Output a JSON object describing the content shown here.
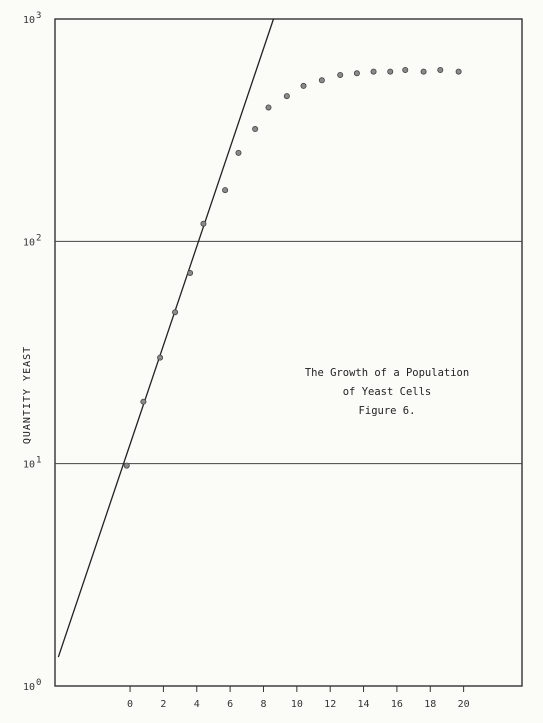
{
  "chart_data": {
    "type": "scatter",
    "ylabel": "QUANTITY YEAST",
    "xlabel": "",
    "y_scale": "log",
    "ylim": [
      1,
      1000
    ],
    "xlim": [
      -4.5,
      23.5
    ],
    "grid": "horizontal lines at each decade",
    "x_ticks": [
      0,
      2,
      4,
      6,
      8,
      10,
      12,
      14,
      16,
      18,
      20
    ],
    "y_ticks": [
      {
        "value": 1,
        "base": "10",
        "exp": "0"
      },
      {
        "value": 10,
        "base": "10",
        "exp": "1"
      },
      {
        "value": 100,
        "base": "10",
        "exp": "2"
      },
      {
        "value": 1000,
        "base": "10",
        "exp": "3"
      }
    ],
    "annotation": [
      "The Growth of a Population",
      "of Yeast Cells",
      "Figure 6."
    ],
    "series": [
      {
        "type": "scatter",
        "x": [
          -0.2,
          0.8,
          1.8,
          2.7,
          3.6,
          4.4,
          5.7,
          6.5,
          7.5,
          8.3,
          9.4,
          10.4,
          11.5,
          12.6,
          13.6,
          14.6,
          15.6,
          16.5,
          17.6,
          18.6,
          19.7
        ],
        "y": [
          9.8,
          19,
          30,
          48,
          72,
          120,
          170,
          250,
          320,
          400,
          450,
          500,
          530,
          560,
          570,
          580,
          580,
          590,
          580,
          590,
          580
        ]
      },
      {
        "type": "line",
        "x": [
          -4.3,
          8.6
        ],
        "y": [
          1.35,
          1000
        ]
      }
    ]
  }
}
